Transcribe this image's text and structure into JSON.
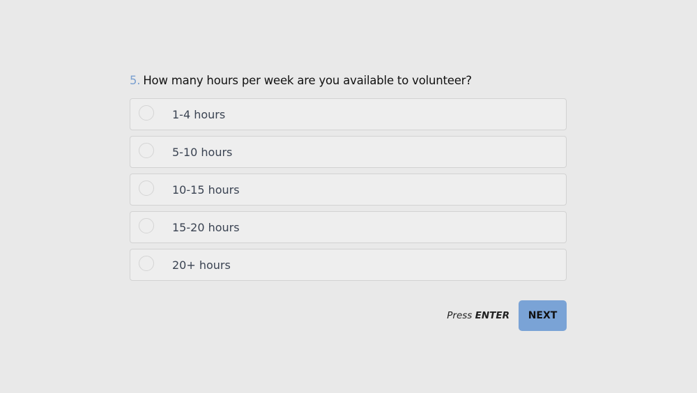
{
  "question": {
    "number": "5.",
    "text": "How many hours per week are you available to volunteer?"
  },
  "options": [
    {
      "label": "1-4 hours",
      "selected": false
    },
    {
      "label": "5-10 hours",
      "selected": false
    },
    {
      "label": "10-15 hours",
      "selected": false
    },
    {
      "label": "15-20 hours",
      "selected": false
    },
    {
      "label": "20+ hours",
      "selected": false
    }
  ],
  "footer": {
    "press": "Press",
    "key": "ENTER",
    "next_label": "NEXT"
  },
  "colors": {
    "accent": "#7aa3d6",
    "background": "#e9e9e9"
  }
}
